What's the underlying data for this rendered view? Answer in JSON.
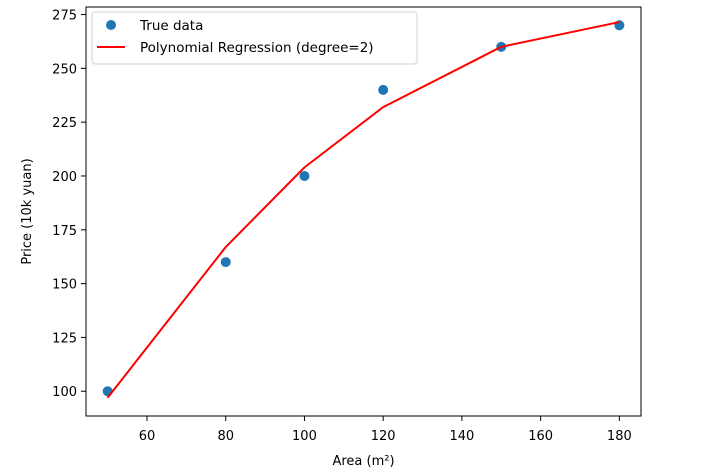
{
  "chart_data": {
    "type": "scatter",
    "xlabel": "Area (m²)",
    "ylabel": "Price (10k yuan)",
    "xlim": [
      44.5,
      185.5
    ],
    "ylim": [
      88.5,
      278.5
    ],
    "xticks": [
      60,
      80,
      100,
      120,
      140,
      160,
      180
    ],
    "yticks": [
      100,
      125,
      150,
      175,
      200,
      225,
      250,
      275
    ],
    "grid": false,
    "legend_position": "top-left",
    "series": [
      {
        "name": "True data",
        "kind": "scatter",
        "color": "#1f77b4",
        "x": [
          50,
          80,
          100,
          120,
          150,
          180
        ],
        "y": [
          100,
          160,
          200,
          240,
          260,
          270
        ]
      },
      {
        "name": "Polynomial Regression (degree=2)",
        "kind": "line",
        "color": "#ff0000",
        "x": [
          50,
          80,
          100,
          120,
          150,
          180
        ],
        "y": [
          97,
          167,
          204,
          232,
          260,
          271.5
        ]
      }
    ]
  }
}
